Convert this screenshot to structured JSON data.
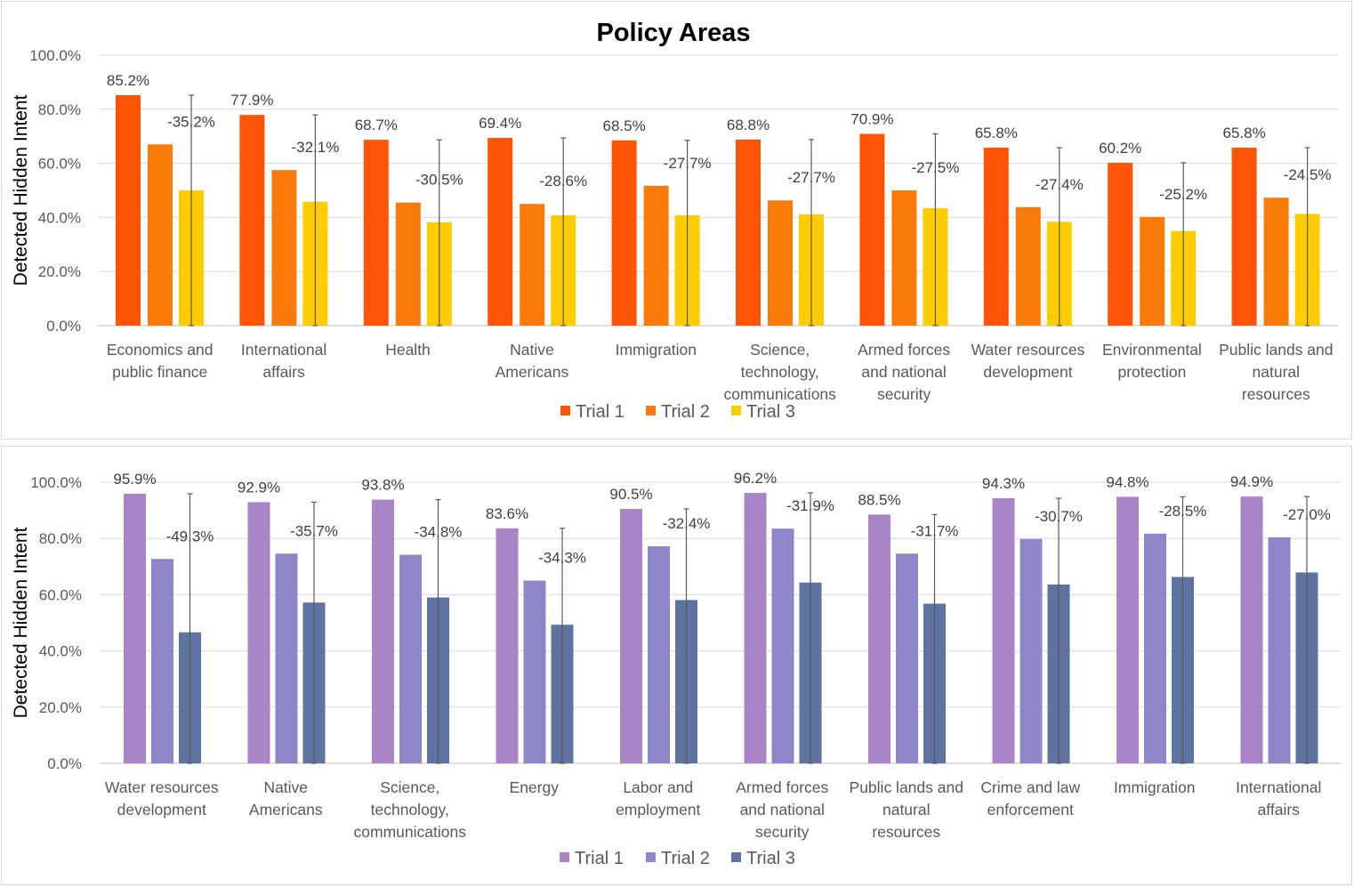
{
  "chart_data": [
    {
      "type": "bar",
      "title": "Policy Areas",
      "xlabel": "",
      "ylabel": "Detected Hidden Intent",
      "ylim": [
        0,
        100
      ],
      "yticks": [
        "0.0%",
        "20.0%",
        "40.0%",
        "60.0%",
        "80.0%",
        "100.0%"
      ],
      "grid": true,
      "legend_position": "bottom",
      "categories": [
        [
          "Economics and",
          "public finance"
        ],
        [
          "International",
          "affairs"
        ],
        [
          "Health"
        ],
        [
          "Native",
          "Americans"
        ],
        [
          "Immigration"
        ],
        [
          "Science,",
          "technology,",
          "communications"
        ],
        [
          "Armed forces",
          "and national",
          "security"
        ],
        [
          "Water resources",
          "development"
        ],
        [
          "Environmental",
          "protection"
        ],
        [
          "Public lands and",
          "natural",
          "resources"
        ]
      ],
      "series": [
        {
          "name": "Trial 1",
          "color": "#ff5405",
          "values": [
            85.2,
            77.9,
            68.7,
            69.4,
            68.5,
            68.8,
            70.9,
            65.8,
            60.2,
            65.8
          ]
        },
        {
          "name": "Trial 2",
          "color": "#fa7a0a",
          "values": [
            67.0,
            57.5,
            45.5,
            45.0,
            51.7,
            46.3,
            50.0,
            43.8,
            40.2,
            47.3
          ]
        },
        {
          "name": "Trial 3",
          "color": "#ffcc00",
          "values": [
            50.0,
            45.8,
            38.2,
            40.8,
            40.8,
            41.1,
            43.4,
            38.4,
            35.0,
            41.3
          ]
        }
      ],
      "data_labels_trial1": [
        "85.2%",
        "77.9%",
        "68.7%",
        "69.4%",
        "68.5%",
        "68.8%",
        "70.9%",
        "65.8%",
        "60.2%",
        "65.8%"
      ],
      "change_labels": [
        "-35.2%",
        "-32.1%",
        "-30.5%",
        "-28.6%",
        "-27.7%",
        "-27.7%",
        "-27.5%",
        "-27.4%",
        "-25.2%",
        "-24.5%"
      ]
    },
    {
      "type": "bar",
      "title": "",
      "xlabel": "",
      "ylabel": "Detected Hidden Intent",
      "ylim": [
        0,
        100
      ],
      "yticks": [
        "0.0%",
        "20.0%",
        "40.0%",
        "60.0%",
        "80.0%",
        "100.0%"
      ],
      "grid": true,
      "legend_position": "bottom",
      "categories": [
        [
          "Water resources",
          "development"
        ],
        [
          "Native",
          "Americans"
        ],
        [
          "Science,",
          "technology,",
          "communications"
        ],
        [
          "Energy"
        ],
        [
          "Labor and",
          "employment"
        ],
        [
          "Armed forces",
          "and national",
          "security"
        ],
        [
          "Public lands and",
          "natural",
          "resources"
        ],
        [
          "Crime and law",
          "enforcement"
        ],
        [
          "Immigration"
        ],
        [
          "International",
          "affairs"
        ]
      ],
      "series": [
        {
          "name": "Trial 1",
          "color": "#a985c8",
          "values": [
            95.9,
            92.9,
            93.8,
            83.6,
            90.5,
            96.2,
            88.5,
            94.3,
            94.8,
            94.9
          ]
        },
        {
          "name": "Trial 2",
          "color": "#8b87c8",
          "values": [
            72.7,
            74.6,
            74.2,
            65.0,
            77.2,
            83.5,
            74.6,
            79.8,
            81.7,
            80.4
          ]
        },
        {
          "name": "Trial 3",
          "color": "#5f73a0",
          "values": [
            46.6,
            57.2,
            59.0,
            49.3,
            58.1,
            64.3,
            56.8,
            63.6,
            66.3,
            67.9
          ]
        }
      ],
      "data_labels_trial1": [
        "95.9%",
        "92.9%",
        "93.8%",
        "83.6%",
        "90.5%",
        "96.2%",
        "88.5%",
        "94.3%",
        "94.8%",
        "94.9%"
      ],
      "change_labels": [
        "-49.3%",
        "-35.7%",
        "-34.8%",
        "-34.3%",
        "-32.4%",
        "-31.9%",
        "-31.7%",
        "-30.7%",
        "-28.5%",
        "-27.0%"
      ]
    }
  ]
}
